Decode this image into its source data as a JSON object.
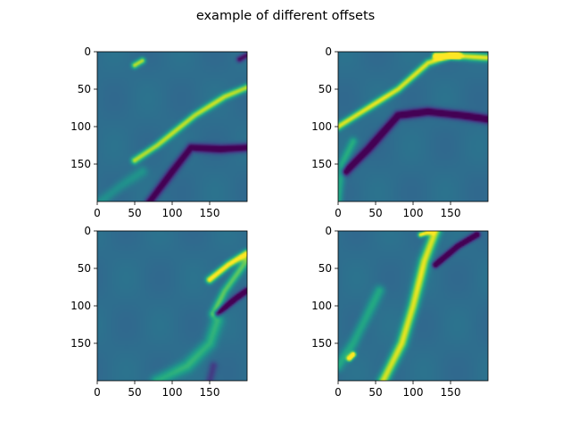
{
  "figure": {
    "title": "example of different offsets"
  },
  "chart_data": [
    {
      "type": "heatmap",
      "colormap": "viridis",
      "xticks": [
        0,
        50,
        100,
        150
      ],
      "yticks": [
        0,
        50,
        100,
        150
      ],
      "xlim": [
        0,
        200
      ],
      "ylim": [
        200,
        0
      ],
      "features": [
        {
          "kind": "ridge",
          "sign": 1,
          "amp": 0.55,
          "pts": [
            [
              50,
              145
            ],
            [
              80,
              125
            ],
            [
              130,
              85
            ],
            [
              170,
              60
            ],
            [
              199,
              48
            ]
          ],
          "w": 3.5
        },
        {
          "kind": "ridge",
          "sign": 1,
          "amp": 0.55,
          "pts": [
            [
              50,
              18
            ],
            [
              60,
              12
            ]
          ],
          "w": 3
        },
        {
          "kind": "ridge",
          "sign": -1,
          "amp": 0.45,
          "pts": [
            [
              70,
              200
            ],
            [
              100,
              160
            ],
            [
              125,
              128
            ],
            [
              165,
              130
            ],
            [
              199,
              128
            ]
          ],
          "w": 4
        },
        {
          "kind": "ridge",
          "sign": -1,
          "amp": 0.35,
          "pts": [
            [
              190,
              10
            ],
            [
              199,
              5
            ]
          ],
          "w": 3
        },
        {
          "kind": "ridge",
          "sign": 0.6,
          "amp": 0.25,
          "pts": [
            [
              5,
              200
            ],
            [
              30,
              180
            ],
            [
              60,
              160
            ]
          ],
          "w": 5
        }
      ]
    },
    {
      "type": "heatmap",
      "colormap": "viridis",
      "xticks": [
        0,
        50,
        100,
        150
      ],
      "yticks": [
        0,
        50,
        100,
        150
      ],
      "xlim": [
        0,
        200
      ],
      "ylim": [
        200,
        0
      ],
      "features": [
        {
          "kind": "ridge",
          "sign": 1,
          "amp": 0.6,
          "pts": [
            [
              0,
              100
            ],
            [
              40,
              75
            ],
            [
              80,
              50
            ],
            [
              120,
              15
            ],
            [
              150,
              5
            ],
            [
              199,
              8
            ]
          ],
          "w": 3.5
        },
        {
          "kind": "ridge",
          "sign": 1,
          "amp": 0.9,
          "pts": [
            [
              130,
              5
            ],
            [
              160,
              5
            ]
          ],
          "w": 3
        },
        {
          "kind": "ridge",
          "sign": -1,
          "amp": 0.5,
          "pts": [
            [
              10,
              160
            ],
            [
              40,
              130
            ],
            [
              80,
              85
            ],
            [
              120,
              80
            ],
            [
              165,
              85
            ],
            [
              199,
              90
            ]
          ],
          "w": 4
        },
        {
          "kind": "ridge",
          "sign": 0.7,
          "amp": 0.35,
          "pts": [
            [
              0,
              200
            ],
            [
              5,
              150
            ],
            [
              20,
              120
            ]
          ],
          "w": 4
        }
      ]
    },
    {
      "type": "heatmap",
      "colormap": "viridis",
      "xticks": [
        0,
        50,
        100,
        150
      ],
      "yticks": [
        0,
        50,
        100,
        150
      ],
      "xlim": [
        0,
        200
      ],
      "ylim": [
        200,
        0
      ],
      "features": [
        {
          "kind": "ridge",
          "sign": 1,
          "amp": 0.7,
          "pts": [
            [
              150,
              65
            ],
            [
              175,
              45
            ],
            [
              199,
              30
            ]
          ],
          "w": 3.5
        },
        {
          "kind": "ridge",
          "sign": 1,
          "amp": 0.4,
          "pts": [
            [
              155,
              110
            ],
            [
              170,
              80
            ],
            [
              199,
              40
            ]
          ],
          "w": 4
        },
        {
          "kind": "ridge",
          "sign": -1,
          "amp": 0.55,
          "pts": [
            [
              160,
              110
            ],
            [
              185,
              90
            ],
            [
              199,
              80
            ]
          ],
          "w": 3
        },
        {
          "kind": "ridge",
          "sign": 0.8,
          "amp": 0.35,
          "pts": [
            [
              80,
              200
            ],
            [
              120,
              180
            ],
            [
              150,
              150
            ],
            [
              160,
              120
            ]
          ],
          "w": 6
        },
        {
          "kind": "ridge",
          "sign": -0.6,
          "amp": 0.3,
          "pts": [
            [
              150,
              200
            ],
            [
              155,
              180
            ]
          ],
          "w": 4
        }
      ]
    },
    {
      "type": "heatmap",
      "colormap": "viridis",
      "xticks": [
        0,
        50,
        100,
        150
      ],
      "yticks": [
        0,
        50,
        100,
        150
      ],
      "xlim": [
        0,
        200
      ],
      "ylim": [
        200,
        0
      ],
      "features": [
        {
          "kind": "ridge",
          "sign": 1,
          "amp": 0.6,
          "pts": [
            [
              60,
              200
            ],
            [
              85,
              150
            ],
            [
              100,
              100
            ],
            [
              115,
              40
            ],
            [
              130,
              0
            ]
          ],
          "w": 5
        },
        {
          "kind": "ridge",
          "sign": -1,
          "amp": 0.55,
          "pts": [
            [
              130,
              45
            ],
            [
              160,
              20
            ],
            [
              185,
              5
            ]
          ],
          "w": 3
        },
        {
          "kind": "ridge",
          "sign": 1,
          "amp": 0.9,
          "pts": [
            [
              15,
              170
            ],
            [
              20,
              165
            ]
          ],
          "w": 2.5
        },
        {
          "kind": "ridge",
          "sign": 0.7,
          "amp": 0.35,
          "pts": [
            [
              0,
              180
            ],
            [
              20,
              150
            ],
            [
              40,
              110
            ],
            [
              55,
              80
            ]
          ],
          "w": 5
        },
        {
          "kind": "ridge",
          "sign": 1,
          "amp": 0.7,
          "pts": [
            [
              110,
              5
            ],
            [
              125,
              0
            ]
          ],
          "w": 2.5
        }
      ]
    }
  ]
}
